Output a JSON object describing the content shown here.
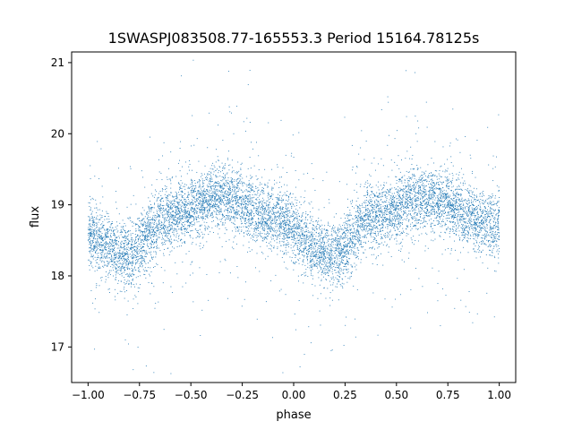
{
  "chart_data": {
    "type": "scatter",
    "title": "1SWASPJ083508.77-165553.3 Period 15164.78125s",
    "xlabel": "phase",
    "ylabel": "flux",
    "xlim": [
      -1.08,
      1.08
    ],
    "ylim": [
      16.5,
      21.15
    ],
    "xticks": [
      -1.0,
      -0.75,
      -0.5,
      -0.25,
      0.0,
      0.25,
      0.5,
      0.75,
      1.0
    ],
    "xtick_labels": [
      "−1.00",
      "−0.75",
      "−0.50",
      "−0.25",
      "0.00",
      "0.25",
      "0.50",
      "0.75",
      "1.00"
    ],
    "yticks": [
      17,
      18,
      19,
      20,
      21
    ],
    "ytick_labels": [
      "17",
      "18",
      "19",
      "20",
      "21"
    ],
    "grid": false,
    "legend": "none",
    "point_color": "#1f77b4",
    "trend": {
      "description_points": [
        {
          "phase": -1.0,
          "flux": 18.55
        },
        {
          "phase": -0.82,
          "flux": 18.3
        },
        {
          "phase": -0.6,
          "flux": 18.85
        },
        {
          "phase": -0.35,
          "flux": 19.1
        },
        {
          "phase": -0.1,
          "flux": 18.8
        },
        {
          "phase": 0.18,
          "flux": 18.3
        },
        {
          "phase": 0.4,
          "flux": 18.85
        },
        {
          "phase": 0.65,
          "flux": 19.1
        },
        {
          "phase": 1.0,
          "flux": 18.7
        }
      ]
    }
  }
}
